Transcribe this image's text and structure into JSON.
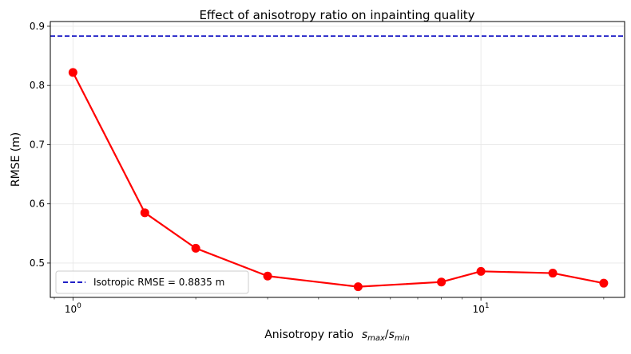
{
  "chart_data": {
    "type": "line",
    "title": "Effect of anisotropy ratio on inpainting quality",
    "xlabel": {
      "prefix": "Anisotropy ratio",
      "s1": "s",
      "sub1": "max",
      "slash": "/",
      "s2": "s",
      "sub2": "min"
    },
    "ylabel": "RMSE (m)",
    "xscale": "log",
    "xlim": [
      0.88,
      22.5
    ],
    "ylim": [
      0.442,
      0.908
    ],
    "x_ticks": [
      {
        "value": 1,
        "base": "10",
        "exp": "0"
      },
      {
        "value": 10,
        "base": "10",
        "exp": "1"
      }
    ],
    "y_ticks": [
      {
        "value": 0.5,
        "label": "0.5"
      },
      {
        "value": 0.6,
        "label": "0.6"
      },
      {
        "value": 0.7,
        "label": "0.7"
      },
      {
        "value": 0.8,
        "label": "0.8"
      },
      {
        "value": 0.9,
        "label": "0.9"
      }
    ],
    "x": [
      1,
      1.5,
      2,
      3,
      5,
      8,
      10,
      15,
      20
    ],
    "series": [
      {
        "values": [
          0.822,
          0.585,
          0.525,
          0.478,
          0.46,
          0.468,
          0.486,
          0.483,
          0.466
        ],
        "color": "#ff0000"
      }
    ],
    "reference_line": {
      "name": "Isotropic RMSE = 0.8835 m",
      "value": 0.8835,
      "color": "#0000bf",
      "style": "dashed"
    },
    "legend_position": "lower-left",
    "grid": true
  }
}
